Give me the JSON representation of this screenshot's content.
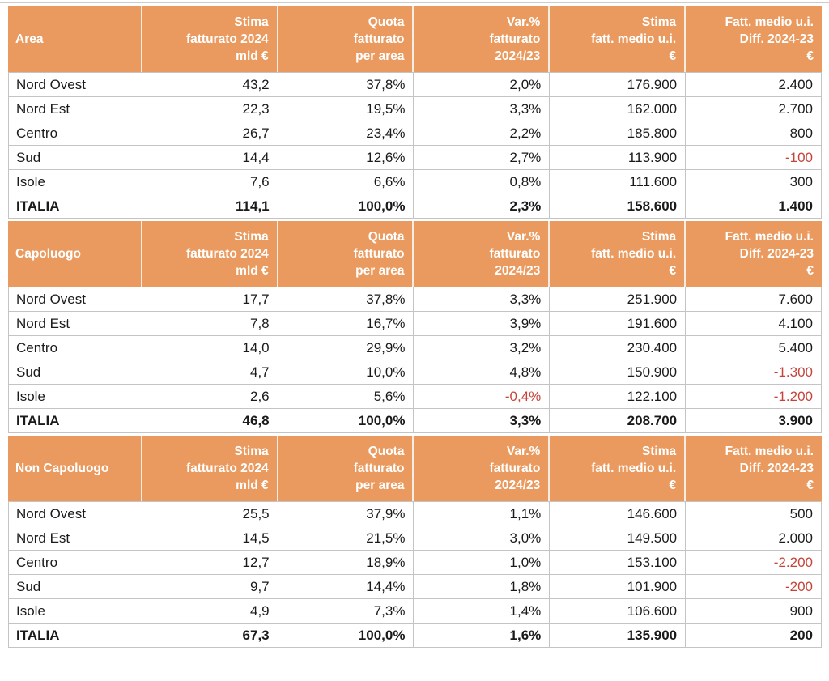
{
  "colors": {
    "header_bg": "#ea9a5e",
    "header_text": "#ffffff",
    "negative_text": "#c7433a",
    "grid_line": "#c4c4c4",
    "body_text": "#1a1a1a"
  },
  "sections": [
    {
      "label": "Area",
      "column_headers": [
        "Stima\nfatturato 2024\nmld €",
        "Quota\nfatturato\nper area",
        "Var.%\nfatturato\n2024/23",
        "Stima\nfatt. medio u.i.\n€",
        "Fatt. medio u.i.\nDiff. 2024-23\n€"
      ],
      "rows": [
        {
          "area": "Nord Ovest",
          "values": [
            "43,2",
            "37,8%",
            "2,0%",
            "176.900",
            "2.400"
          ]
        },
        {
          "area": "Nord Est",
          "values": [
            "22,3",
            "19,5%",
            "3,3%",
            "162.000",
            "2.700"
          ]
        },
        {
          "area": "Centro",
          "values": [
            "26,7",
            "23,4%",
            "2,2%",
            "185.800",
            "800"
          ]
        },
        {
          "area": "Sud",
          "values": [
            "14,4",
            "12,6%",
            "2,7%",
            "113.900",
            "-100"
          ]
        },
        {
          "area": "Isole",
          "values": [
            "7,6",
            "6,6%",
            "0,8%",
            "111.600",
            "300"
          ]
        },
        {
          "area": "ITALIA",
          "values": [
            "114,1",
            "100,0%",
            "2,3%",
            "158.600",
            "1.400"
          ]
        }
      ]
    },
    {
      "label": "Capoluogo",
      "column_headers": [
        "Stima\nfatturato 2024\nmld €",
        "Quota\nfatturato\nper area",
        "Var.%\nfatturato\n2024/23",
        "Stima\nfatt. medio u.i.\n€",
        "Fatt. medio u.i.\nDiff. 2024-23\n€"
      ],
      "rows": [
        {
          "area": "Nord Ovest",
          "values": [
            "17,7",
            "37,8%",
            "3,3%",
            "251.900",
            "7.600"
          ]
        },
        {
          "area": "Nord Est",
          "values": [
            "7,8",
            "16,7%",
            "3,9%",
            "191.600",
            "4.100"
          ]
        },
        {
          "area": "Centro",
          "values": [
            "14,0",
            "29,9%",
            "3,2%",
            "230.400",
            "5.400"
          ]
        },
        {
          "area": "Sud",
          "values": [
            "4,7",
            "10,0%",
            "4,8%",
            "150.900",
            "-1.300"
          ]
        },
        {
          "area": "Isole",
          "values": [
            "2,6",
            "5,6%",
            "-0,4%",
            "122.100",
            "-1.200"
          ]
        },
        {
          "area": "ITALIA",
          "values": [
            "46,8",
            "100,0%",
            "3,3%",
            "208.700",
            "3.900"
          ]
        }
      ]
    },
    {
      "label": "Non Capoluogo",
      "column_headers": [
        "Stima\nfatturato 2024\nmld €",
        "Quota\nfatturato\nper area",
        "Var.%\nfatturato\n2024/23",
        "Stima\nfatt. medio u.i.\n€",
        "Fatt. medio u.i.\nDiff. 2024-23\n€"
      ],
      "rows": [
        {
          "area": "Nord Ovest",
          "values": [
            "25,5",
            "37,9%",
            "1,1%",
            "146.600",
            "500"
          ]
        },
        {
          "area": "Nord Est",
          "values": [
            "14,5",
            "21,5%",
            "3,0%",
            "149.500",
            "2.000"
          ]
        },
        {
          "area": "Centro",
          "values": [
            "12,7",
            "18,9%",
            "1,0%",
            "153.100",
            "-2.200"
          ]
        },
        {
          "area": "Sud",
          "values": [
            "9,7",
            "14,4%",
            "1,8%",
            "101.900",
            "-200"
          ]
        },
        {
          "area": "Isole",
          "values": [
            "4,9",
            "7,3%",
            "1,4%",
            "106.600",
            "900"
          ]
        },
        {
          "area": "ITALIA",
          "values": [
            "67,3",
            "100,0%",
            "1,6%",
            "135.900",
            "200"
          ]
        }
      ]
    }
  ]
}
